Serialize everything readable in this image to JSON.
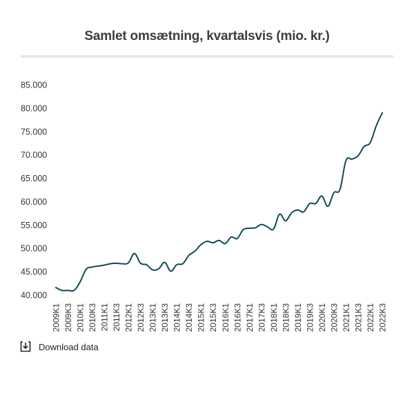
{
  "chart_data": {
    "type": "line",
    "title": "Samlet omsætning, kvartalsvis (mio. kr.)",
    "xlabel": "",
    "ylabel": "",
    "ylim": [
      40000,
      85000
    ],
    "yticks": [
      40000,
      45000,
      50000,
      55000,
      60000,
      65000,
      70000,
      75000,
      80000,
      85000
    ],
    "ytick_labels": [
      "40.000",
      "45.000",
      "50.000",
      "55.000",
      "60.000",
      "65.000",
      "70.000",
      "75.000",
      "80.000",
      "85.000"
    ],
    "xtick_labels": [
      "2009K1",
      "2009K3",
      "2010K1",
      "2010K3",
      "2011K1",
      "2011K3",
      "2012K1",
      "2012K3",
      "2013K1",
      "2013K3",
      "2014K1",
      "2014K3",
      "2015K1",
      "2015K3",
      "2016K1",
      "2016K3",
      "2017K1",
      "2017K3",
      "2018K1",
      "2018K3",
      "2019K1",
      "2019K3",
      "2020K1",
      "2020K3",
      "2021K1",
      "2021K3",
      "2022K1",
      "2022K3"
    ],
    "grid": false,
    "line_color": "#0d4a4f",
    "series": [
      {
        "name": "Samlet omsætning",
        "x": [
          "2009K1",
          "2009K2",
          "2009K3",
          "2009K4",
          "2010K1",
          "2010K2",
          "2010K3",
          "2010K4",
          "2011K1",
          "2011K2",
          "2011K3",
          "2011K4",
          "2012K1",
          "2012K2",
          "2012K3",
          "2012K4",
          "2013K1",
          "2013K2",
          "2013K3",
          "2013K4",
          "2014K1",
          "2014K2",
          "2014K3",
          "2014K4",
          "2015K1",
          "2015K2",
          "2015K3",
          "2015K4",
          "2016K1",
          "2016K2",
          "2016K3",
          "2016K4",
          "2017K1",
          "2017K2",
          "2017K3",
          "2017K4",
          "2018K1",
          "2018K2",
          "2018K3",
          "2018K4",
          "2019K1",
          "2019K2",
          "2019K3",
          "2019K4",
          "2020K1",
          "2020K2",
          "2020K3",
          "2020K4",
          "2021K1",
          "2021K2",
          "2021K3",
          "2021K4",
          "2022K1",
          "2022K2",
          "2022K3"
        ],
        "values": [
          41600,
          41000,
          41000,
          41000,
          42800,
          45500,
          46000,
          46200,
          46400,
          46700,
          46800,
          46700,
          46900,
          48900,
          46800,
          46500,
          45400,
          45600,
          47000,
          45100,
          46500,
          46700,
          48500,
          49400,
          50800,
          51500,
          51200,
          51700,
          51000,
          52400,
          52100,
          54000,
          54300,
          54400,
          55100,
          54600,
          54100,
          57300,
          55900,
          57600,
          58200,
          57800,
          59600,
          59600,
          61200,
          59000,
          61900,
          62600,
          68800,
          69100,
          69800,
          71800,
          72600,
          76200,
          79000
        ]
      }
    ]
  },
  "download": {
    "label": "Download data",
    "icon": "download-icon"
  }
}
